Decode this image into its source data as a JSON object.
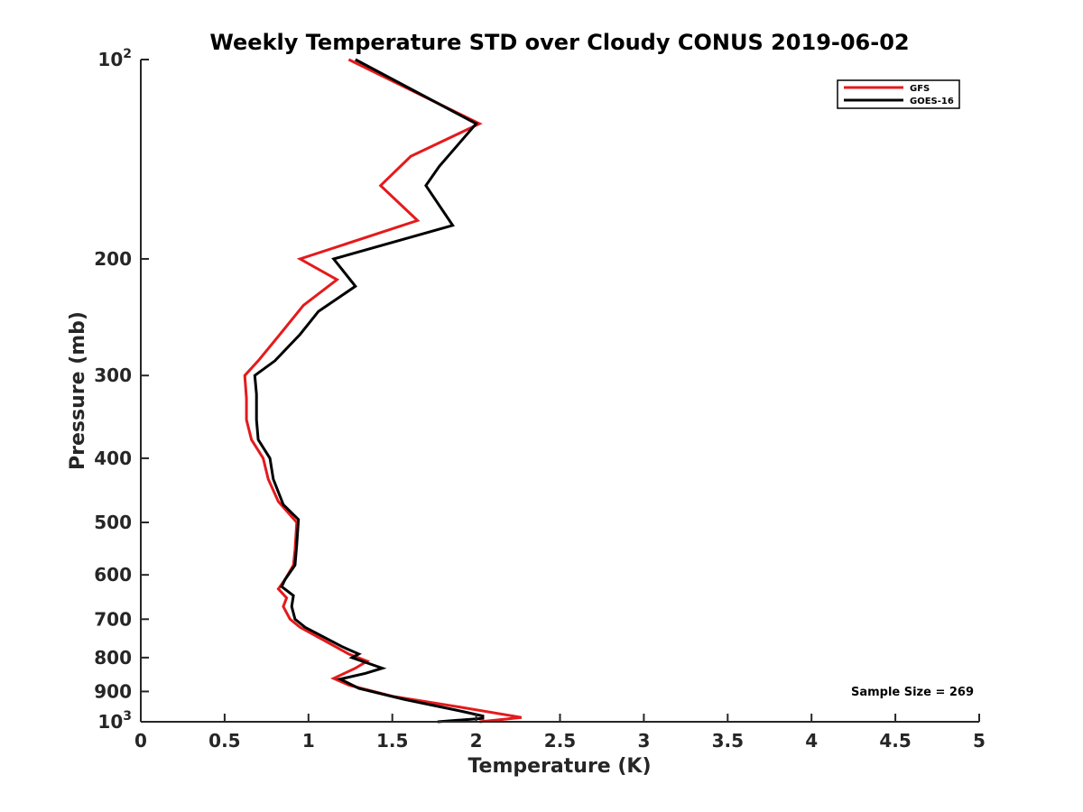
{
  "chart_data": {
    "type": "line",
    "title": "Weekly Temperature STD over Cloudy CONUS 2019-06-02",
    "xlabel": "Temperature (K)",
    "ylabel": "Pressure (mb)",
    "xlim": [
      0,
      5
    ],
    "ylim": [
      100,
      1000
    ],
    "y_scale": "log",
    "y_reversed": true,
    "grid": false,
    "legend_position": "top-right",
    "x_ticks": [
      {
        "value": 0,
        "label": "0"
      },
      {
        "value": 0.5,
        "label": "0.5"
      },
      {
        "value": 1,
        "label": "1"
      },
      {
        "value": 1.5,
        "label": "1.5"
      },
      {
        "value": 2,
        "label": "2"
      },
      {
        "value": 2.5,
        "label": "2.5"
      },
      {
        "value": 3,
        "label": "3"
      },
      {
        "value": 3.5,
        "label": "3.5"
      },
      {
        "value": 4,
        "label": "4"
      },
      {
        "value": 4.5,
        "label": "4.5"
      },
      {
        "value": 5,
        "label": "5"
      }
    ],
    "y_ticks": [
      {
        "value": 100,
        "base": "10",
        "exp": "2"
      },
      {
        "value": 200,
        "base": "200",
        "exp": ""
      },
      {
        "value": 300,
        "base": "300",
        "exp": ""
      },
      {
        "value": 400,
        "base": "400",
        "exp": ""
      },
      {
        "value": 500,
        "base": "500",
        "exp": ""
      },
      {
        "value": 600,
        "base": "600",
        "exp": ""
      },
      {
        "value": 700,
        "base": "700",
        "exp": ""
      },
      {
        "value": 800,
        "base": "800",
        "exp": ""
      },
      {
        "value": 900,
        "base": "900",
        "exp": ""
      },
      {
        "value": 1000,
        "base": "10",
        "exp": "3"
      }
    ],
    "series": [
      {
        "name": "GFS",
        "color": "#e41a1c",
        "points": [
          [
            1.24,
            100
          ],
          [
            2.02,
            125
          ],
          [
            1.61,
            140
          ],
          [
            1.43,
            155
          ],
          [
            1.65,
            175
          ],
          [
            0.95,
            200
          ],
          [
            1.17,
            215
          ],
          [
            0.97,
            235
          ],
          [
            0.83,
            260
          ],
          [
            0.7,
            285
          ],
          [
            0.62,
            300
          ],
          [
            0.63,
            325
          ],
          [
            0.63,
            350
          ],
          [
            0.66,
            375
          ],
          [
            0.73,
            400
          ],
          [
            0.76,
            430
          ],
          [
            0.82,
            465
          ],
          [
            0.93,
            500
          ],
          [
            0.92,
            550
          ],
          [
            0.91,
            580
          ],
          [
            0.86,
            610
          ],
          [
            0.82,
            630
          ],
          [
            0.87,
            650
          ],
          [
            0.85,
            670
          ],
          [
            0.89,
            700
          ],
          [
            0.95,
            720
          ],
          [
            1.12,
            760
          ],
          [
            1.24,
            790
          ],
          [
            1.35,
            810
          ],
          [
            1.28,
            830
          ],
          [
            1.15,
            860
          ],
          [
            1.24,
            880
          ],
          [
            1.5,
            915
          ],
          [
            1.9,
            950
          ],
          [
            2.27,
            985
          ],
          [
            2.02,
            1000
          ]
        ]
      },
      {
        "name": "GOES-16",
        "color": "#000000",
        "points": [
          [
            1.28,
            100
          ],
          [
            2.0,
            125
          ],
          [
            1.78,
            145
          ],
          [
            1.7,
            155
          ],
          [
            1.86,
            178
          ],
          [
            1.15,
            200
          ],
          [
            1.28,
            220
          ],
          [
            1.06,
            240
          ],
          [
            0.95,
            260
          ],
          [
            0.8,
            285
          ],
          [
            0.68,
            300
          ],
          [
            0.69,
            320
          ],
          [
            0.69,
            350
          ],
          [
            0.7,
            375
          ],
          [
            0.77,
            400
          ],
          [
            0.79,
            430
          ],
          [
            0.85,
            470
          ],
          [
            0.94,
            495
          ],
          [
            0.93,
            540
          ],
          [
            0.92,
            580
          ],
          [
            0.86,
            610
          ],
          [
            0.84,
            625
          ],
          [
            0.91,
            645
          ],
          [
            0.9,
            670
          ],
          [
            0.92,
            700
          ],
          [
            0.98,
            720
          ],
          [
            1.2,
            770
          ],
          [
            1.3,
            790
          ],
          [
            1.26,
            800
          ],
          [
            1.44,
            830
          ],
          [
            1.34,
            845
          ],
          [
            1.19,
            862
          ],
          [
            1.3,
            890
          ],
          [
            1.57,
            925
          ],
          [
            1.92,
            965
          ],
          [
            2.04,
            980
          ],
          [
            2.04,
            988
          ],
          [
            1.77,
            1000
          ]
        ]
      }
    ],
    "annotations": [
      {
        "text": "Sample Size = 269",
        "position": "bottom-right"
      }
    ]
  }
}
